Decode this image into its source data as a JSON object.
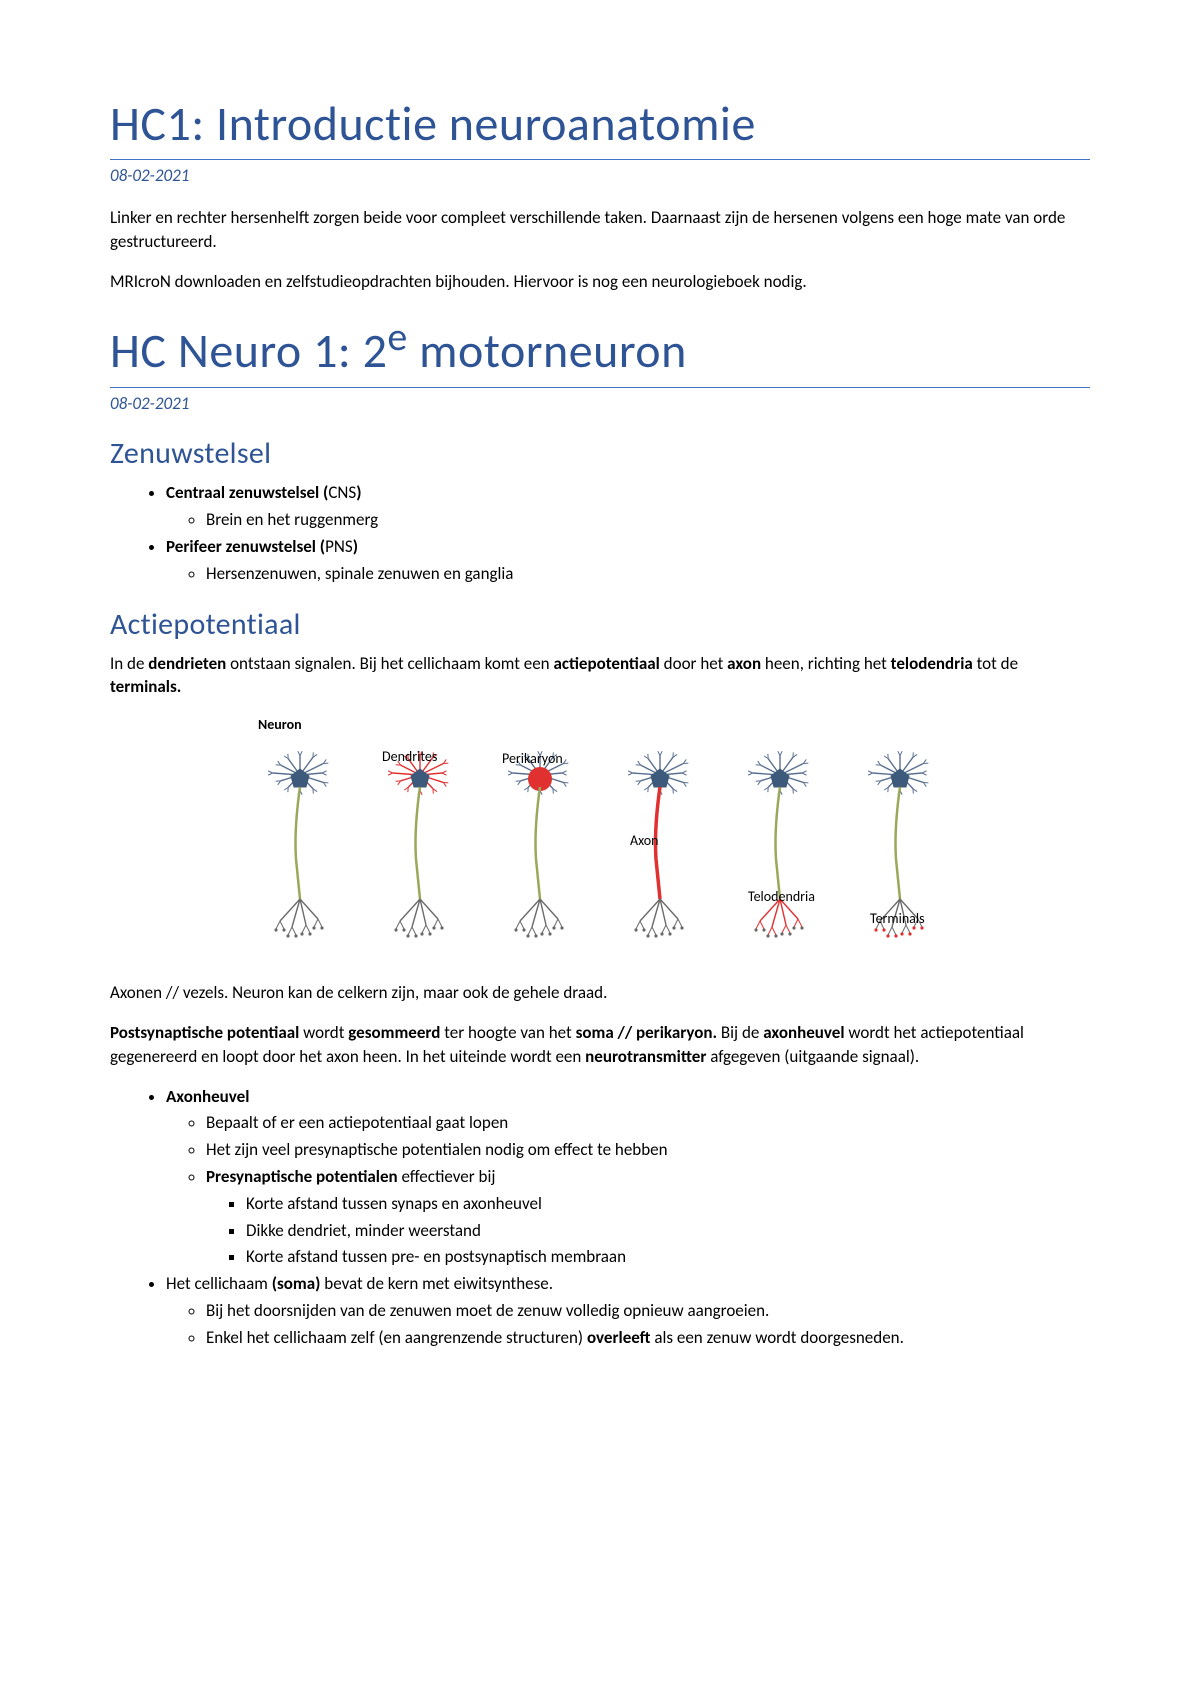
{
  "section1": {
    "title": "HC1: Introductie neuroanatomie",
    "date": "08-02-2021",
    "p1": "Linker en rechter hersenhelft zorgen beide voor compleet verschillende taken. Daarnaast zijn de hersenen volgens een hoge mate van orde gestructureerd.",
    "p2": "MRIcroN downloaden en zelfstudieopdrachten bijhouden. Hiervoor is nog een neurologieboek nodig."
  },
  "section2": {
    "title_prefix": "HC Neuro 1: 2",
    "title_sup": "e",
    "title_suffix": " motorneuron",
    "date": "08-02-2021"
  },
  "zenuwstelsel": {
    "heading": "Zenuwstelsel",
    "item1_bold": "Centraal zenuwstelsel (",
    "item1_abbr": "CNS",
    "item1_close": ")",
    "item1_sub1": "Brein en het ruggenmerg",
    "item2_bold": "Perifeer zenuwstelsel (",
    "item2_abbr": "PNS",
    "item2_close": ")",
    "item2_sub1": "Hersenzenuwen, spinale zenuwen en ganglia"
  },
  "actiepotentiaal": {
    "heading": "Actiepotentiaal",
    "p1_a": "In de ",
    "p1_b": "dendrieten",
    "p1_c": " ontstaan signalen. Bij het cellichaam komt een ",
    "p1_d": "actiepotentiaal",
    "p1_e": " door het ",
    "p1_f": "axon",
    "p1_g": " heen, richting het ",
    "p1_h": "telodendria",
    "p1_i": " tot de ",
    "p1_j": "terminals.",
    "caption": "Axonen // vezels. Neuron kan de celkern zijn, maar ook de gehele draad.",
    "p2_a": "Postsynaptische potentiaal",
    "p2_b": " wordt ",
    "p2_c": "gesommeerd",
    "p2_d": " ter hoogte van het ",
    "p2_e": "soma // perikaryon.",
    "p2_f": " Bij de ",
    "p2_g": "axonheuvel",
    "p2_h": " wordt het actiepotentiaal gegenereerd en loopt door het axon heen. In het uiteinde wordt een ",
    "p2_i": "neurotransmitter",
    "p2_j": " afgegeven (uitgaande signaal)."
  },
  "axonheuvel": {
    "h": "Axonheuvel",
    "s1": "Bepaalt of er een actiepotentiaal gaat lopen",
    "s2": "Het zijn veel presynaptische potentialen nodig om effect te hebben",
    "s3_a": "Presynaptische potentialen",
    "s3_b": " effectiever bij",
    "s3_1": "Korte afstand tussen synaps en axonheuvel",
    "s3_2": "Dikke dendriet, minder weerstand",
    "s3_3": "Korte afstand tussen pre- en postsynaptisch membraan"
  },
  "soma": {
    "a": "Het cellichaam ",
    "b": "(soma)",
    "c": " bevat de kern met eiwitsynthese.",
    "s1": "Bij het doorsnijden van de zenuwen moet de zenuw volledig opnieuw aangroeien.",
    "s2_a": "Enkel het cellichaam zelf (en aangrenzende structuren) ",
    "s2_b": "overleeft",
    "s2_c": " als een zenuw wordt doorgesneden."
  },
  "diagram": {
    "labels": {
      "neuron": "Neuron",
      "dendrites": "Dendrites",
      "perikaryon": "Perikaryon",
      "axon": "Axon",
      "telodendria": "Telodendria",
      "terminals": "Terminals"
    },
    "colors": {
      "soma": "#3d5a7a",
      "dendrite": "#5a7090",
      "dendrite_hl": "#e03030",
      "axon": "#9aa85a",
      "axon_hl": "#e03030",
      "term": "#6a6a6a",
      "term_hl": "#e03030",
      "text": "#000000"
    },
    "neuron_count": 6,
    "highlight_index": {
      "dendrites": 1,
      "perikaryon": 2,
      "axon": 3,
      "telodendria": 4,
      "terminals": 5
    }
  }
}
